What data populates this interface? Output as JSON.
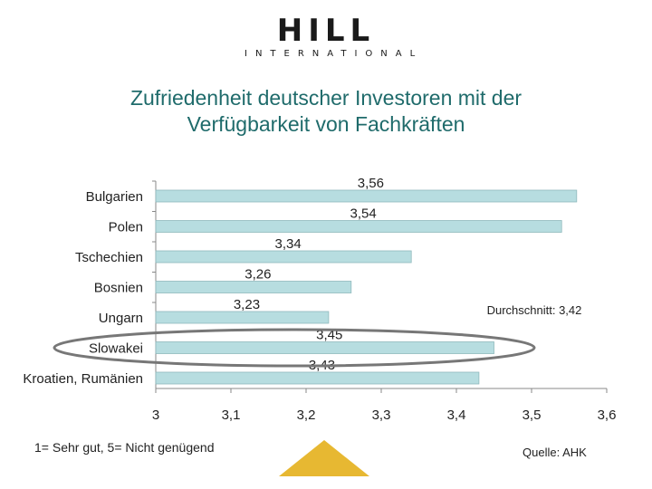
{
  "logo": {
    "main": "HILL",
    "sub": "INTERNATIONAL"
  },
  "title": {
    "line1": "Zufriedenheit deutscher Investoren mit der",
    "line2": "Verfügbarkeit von Fachkräften"
  },
  "chart_data": {
    "type": "bar",
    "orientation": "horizontal",
    "categories": [
      "Bulgarien",
      "Polen",
      "Tschechien",
      "Bosnien",
      "Ungarn",
      "Slowakei",
      "Kroatien, Rumänien"
    ],
    "values": [
      3.56,
      3.54,
      3.34,
      3.26,
      3.23,
      3.45,
      3.43
    ],
    "value_labels": [
      "3,56",
      "3,54",
      "3,34",
      "3,26",
      "3,23",
      "3,45",
      "3,43"
    ],
    "xlim": [
      3,
      3.6
    ],
    "xticks": [
      "3",
      "3,1",
      "3,2",
      "3,3",
      "3,4",
      "3,5",
      "3,6"
    ],
    "bar_color": "#b7dde0",
    "bar_border": "#8fb9bc",
    "annotation": "Durchschnitt: 3,42",
    "highlighted_category": "Slowakei",
    "highlight_color": "#777777",
    "grid": false,
    "legend": "none"
  },
  "footnote": "1= Sehr gut, 5= Nicht genügend",
  "source": "Quelle: AHK",
  "accent": {
    "title_color": "#1f6b6b",
    "arrow_color": "#e7b832"
  }
}
